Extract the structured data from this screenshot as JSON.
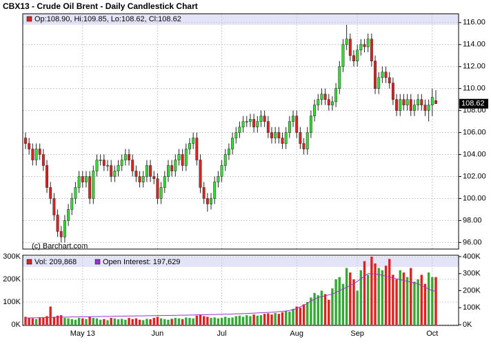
{
  "chart_data": {
    "type": "candlestick",
    "title": "CBX13 - Crude Oil Brent - Daily Candlestick Chart",
    "legend_text": "Op:108.90, Hi:109.85, Lo:108.62, Cl:108.62",
    "copyright": "(c) Barchart.com",
    "up_color": "#33dd33",
    "down_color": "#dd2222",
    "grid": true,
    "categories": [
      null,
      null,
      null,
      null,
      null,
      null,
      null,
      null,
      null,
      null,
      null,
      null,
      null,
      null,
      null,
      null,
      "May 13",
      null,
      null,
      null,
      null,
      null,
      null,
      null,
      null,
      null,
      null,
      null,
      null,
      null,
      null,
      null,
      null,
      null,
      null,
      null,
      null,
      "Jun",
      null,
      null,
      null,
      null,
      null,
      null,
      null,
      null,
      null,
      null,
      null,
      null,
      null,
      null,
      null,
      null,
      null,
      "Jul",
      null,
      null,
      null,
      null,
      null,
      null,
      null,
      null,
      null,
      null,
      null,
      null,
      null,
      null,
      null,
      null,
      null,
      null,
      null,
      null,
      "Aug",
      null,
      null,
      null,
      null,
      null,
      null,
      null,
      null,
      null,
      null,
      null,
      null,
      null,
      null,
      null,
      null,
      "Sep",
      null,
      null,
      null,
      null,
      null,
      null,
      null,
      null,
      null,
      null,
      null,
      null,
      null,
      null,
      null,
      null,
      null,
      null,
      null,
      null,
      "Oct",
      null
    ],
    "open": [
      105.5,
      105.0,
      104.5,
      103.5,
      104.5,
      104.0,
      103.0,
      101.0,
      100.0,
      98.5,
      97.0,
      96.5,
      98.0,
      99.0,
      100.0,
      101.0,
      102.0,
      101.5,
      102.0,
      100.0,
      102.5,
      103.5,
      103.5,
      103.0,
      103.0,
      102.0,
      102.5,
      103.0,
      103.5,
      104.0,
      103.5,
      102.5,
      102.0,
      101.5,
      102.0,
      103.0,
      102.0,
      101.8,
      100.0,
      101.0,
      102.0,
      103.0,
      102.5,
      103.5,
      104.0,
      103.0,
      104.5,
      105.0,
      105.5,
      103.5,
      101.0,
      100.0,
      99.5,
      100.0,
      101.5,
      102.0,
      103.0,
      104.0,
      104.5,
      105.5,
      106.0,
      106.5,
      107.0,
      107.0,
      107.2,
      106.5,
      107.0,
      107.5,
      107.0,
      106.0,
      105.5,
      106.0,
      105.5,
      105.0,
      106.0,
      107.0,
      107.5,
      106.0,
      105.0,
      104.5,
      106.0,
      107.5,
      108.5,
      109.0,
      109.5,
      109.0,
      108.5,
      108.8,
      110.0,
      112.0,
      114.0,
      114.5,
      113.0,
      112.5,
      113.5,
      114.0,
      113.8,
      114.5,
      112.5,
      110.0,
      111.0,
      111.5,
      111.0,
      110.5,
      109.0,
      108.0,
      109.0,
      108.5,
      109.0,
      108.0,
      108.5,
      109.0,
      108.5,
      108.0,
      108.5,
      108.9
    ],
    "high": [
      106.0,
      105.5,
      105.0,
      105.0,
      105.0,
      104.5,
      103.5,
      101.5,
      100.5,
      99.0,
      97.5,
      98.5,
      99.5,
      100.5,
      101.5,
      102.5,
      102.5,
      102.5,
      102.5,
      103.0,
      104.0,
      104.0,
      104.0,
      103.5,
      103.5,
      103.0,
      103.5,
      104.0,
      104.5,
      104.5,
      104.0,
      103.0,
      102.5,
      102.5,
      103.5,
      103.5,
      102.5,
      102.3,
      101.5,
      102.5,
      103.5,
      103.5,
      104.0,
      104.5,
      104.5,
      105.0,
      105.5,
      106.0,
      106.0,
      104.0,
      101.5,
      100.5,
      100.5,
      102.0,
      102.5,
      103.5,
      104.5,
      105.0,
      106.0,
      106.5,
      107.0,
      107.5,
      107.5,
      107.7,
      107.7,
      107.5,
      108.0,
      108.0,
      107.5,
      106.5,
      106.5,
      106.5,
      106.0,
      106.5,
      107.5,
      108.0,
      108.0,
      106.5,
      105.5,
      106.5,
      108.0,
      109.0,
      109.5,
      110.0,
      110.0,
      109.5,
      109.3,
      110.5,
      112.5,
      114.5,
      115.8,
      115.0,
      113.5,
      114.0,
      114.5,
      114.5,
      115.0,
      115.0,
      113.0,
      111.5,
      112.0,
      112.0,
      111.5,
      111.0,
      109.5,
      109.5,
      109.5,
      109.5,
      109.5,
      109.0,
      109.5,
      109.5,
      109.0,
      109.0,
      110.0,
      109.85
    ],
    "low": [
      104.5,
      104.0,
      103.0,
      103.0,
      103.5,
      102.5,
      100.5,
      99.5,
      98.0,
      96.5,
      96.0,
      96.0,
      97.5,
      98.5,
      99.5,
      100.5,
      101.0,
      101.0,
      99.5,
      99.5,
      102.0,
      103.0,
      102.5,
      102.5,
      101.5,
      101.5,
      102.0,
      102.5,
      103.0,
      103.0,
      102.0,
      101.5,
      101.0,
      101.0,
      101.5,
      101.5,
      101.3,
      99.5,
      99.5,
      100.5,
      101.5,
      102.0,
      102.0,
      103.0,
      102.5,
      102.5,
      104.0,
      104.5,
      103.0,
      100.5,
      99.5,
      98.8,
      99.0,
      99.5,
      101.0,
      101.5,
      102.5,
      103.5,
      104.0,
      105.0,
      105.5,
      106.0,
      106.5,
      106.5,
      106.0,
      106.0,
      106.5,
      106.5,
      105.5,
      105.0,
      105.0,
      105.0,
      104.5,
      104.5,
      105.5,
      106.5,
      105.5,
      104.5,
      104.0,
      104.0,
      105.5,
      107.0,
      108.0,
      108.5,
      108.5,
      108.0,
      108.0,
      108.3,
      109.5,
      111.5,
      113.5,
      112.5,
      112.0,
      112.0,
      113.0,
      113.3,
      113.3,
      112.0,
      109.5,
      109.5,
      110.5,
      110.5,
      110.0,
      108.5,
      107.5,
      107.5,
      108.0,
      108.0,
      107.5,
      107.5,
      108.0,
      108.0,
      107.5,
      107.0,
      107.5,
      108.62
    ],
    "close": [
      105.0,
      104.5,
      103.5,
      104.5,
      104.0,
      103.0,
      101.0,
      100.0,
      98.5,
      97.0,
      96.5,
      98.0,
      99.0,
      100.0,
      101.0,
      102.0,
      101.5,
      102.0,
      100.0,
      102.5,
      103.5,
      103.5,
      103.0,
      103.0,
      102.0,
      102.5,
      103.0,
      103.5,
      104.0,
      103.5,
      102.5,
      102.0,
      101.5,
      102.0,
      103.0,
      102.0,
      101.8,
      100.0,
      101.0,
      102.0,
      103.0,
      102.5,
      103.5,
      104.0,
      103.0,
      104.5,
      105.0,
      105.5,
      103.5,
      101.0,
      100.0,
      99.5,
      100.0,
      101.5,
      102.0,
      103.0,
      104.0,
      104.5,
      105.5,
      106.0,
      106.5,
      107.0,
      107.0,
      107.2,
      106.5,
      107.0,
      107.5,
      107.0,
      106.0,
      105.5,
      106.0,
      105.5,
      105.0,
      106.0,
      107.0,
      107.5,
      106.0,
      105.0,
      104.5,
      106.0,
      107.5,
      108.5,
      109.0,
      109.5,
      109.0,
      108.5,
      108.8,
      110.0,
      112.0,
      114.0,
      114.5,
      113.0,
      112.5,
      113.5,
      114.0,
      113.8,
      114.5,
      112.5,
      110.0,
      111.0,
      111.5,
      111.0,
      110.5,
      109.0,
      108.0,
      109.0,
      108.5,
      109.0,
      108.0,
      108.5,
      109.0,
      108.5,
      108.0,
      108.5,
      109.2,
      108.62
    ],
    "ylim": [
      95.4,
      116.8
    ],
    "yticks": [
      {
        "value": 96,
        "label": "96.00"
      },
      {
        "value": 98,
        "label": "98.00"
      },
      {
        "value": 100,
        "label": "100.00"
      },
      {
        "value": 102,
        "label": "102.00"
      },
      {
        "value": 104,
        "label": "104.00"
      },
      {
        "value": 106,
        "label": "106.00"
      },
      {
        "value": 108,
        "label": "108.00"
      },
      {
        "value": 110,
        "label": "110.00"
      },
      {
        "value": 112,
        "label": "112.00"
      },
      {
        "value": 114,
        "label": "114.00"
      },
      {
        "value": 116,
        "label": "116.00"
      }
    ],
    "volume": {
      "legend": "Vol: 209,868",
      "up_color": "#33aa33",
      "down_color": "#dd2222",
      "values": [
        35000,
        30000,
        28000,
        25000,
        30000,
        32000,
        38000,
        80000,
        35000,
        40000,
        42000,
        30000,
        28000,
        25000,
        22000,
        30000,
        28000,
        25000,
        35000,
        30000,
        28000,
        22000,
        25000,
        20000,
        30000,
        28000,
        24000,
        26000,
        22000,
        30000,
        25000,
        28000,
        22000,
        20000,
        26000,
        24000,
        30000,
        35000,
        28000,
        25000,
        22000,
        26000,
        30000,
        28000,
        25000,
        32000,
        30000,
        28000,
        40000,
        45000,
        38000,
        35000,
        30000,
        32000,
        28000,
        30000,
        35000,
        30000,
        32000,
        38000,
        40000,
        35000,
        42000,
        38000,
        45000,
        40000,
        42000,
        48000,
        50000,
        45000,
        52000,
        48000,
        55000,
        60000,
        58000,
        70000,
        80000,
        75000,
        90000,
        100000,
        120000,
        140000,
        130000,
        150000,
        135000,
        110000,
        160000,
        200000,
        210000,
        180000,
        250000,
        230000,
        200000,
        150000,
        240000,
        280000,
        220000,
        300000,
        270000,
        250000,
        240000,
        260000,
        290000,
        220000,
        200000,
        240000,
        230000,
        210000,
        250000,
        190000,
        200000,
        220000,
        180000,
        230000,
        210000,
        209868
      ],
      "ylim": [
        0,
        300000
      ],
      "yticks": [
        {
          "value": 0,
          "label": "0K"
        },
        {
          "value": 100000,
          "label": "100K"
        },
        {
          "value": 200000,
          "label": "200K"
        },
        {
          "value": 300000,
          "label": "300K"
        }
      ]
    },
    "open_interest": {
      "legend": "Open Interest: 197,629",
      "color": "#9933cc",
      "values": [
        40000,
        40000,
        41000,
        41000,
        42000,
        42000,
        43000,
        43000,
        44000,
        44000,
        45000,
        45000,
        45000,
        46000,
        46000,
        46000,
        47000,
        47000,
        47000,
        48000,
        48000,
        48000,
        49000,
        49000,
        49000,
        50000,
        50000,
        50000,
        51000,
        51000,
        51000,
        52000,
        52000,
        52000,
        53000,
        53000,
        53000,
        54000,
        54000,
        54000,
        55000,
        55000,
        55000,
        56000,
        56000,
        56000,
        57000,
        57000,
        58000,
        58000,
        59000,
        59000,
        60000,
        60000,
        61000,
        61000,
        62000,
        62000,
        63000,
        64000,
        64000,
        65000,
        66000,
        67000,
        68000,
        69000,
        70000,
        71000,
        72000,
        73000,
        75000,
        77000,
        79000,
        81000,
        84000,
        88000,
        95000,
        105000,
        115000,
        125000,
        140000,
        150000,
        160000,
        165000,
        170000,
        175000,
        180000,
        190000,
        200000,
        210000,
        220000,
        230000,
        240000,
        255000,
        270000,
        285000,
        300000,
        300000,
        298000,
        295000,
        290000,
        285000,
        280000,
        275000,
        270000,
        265000,
        260000,
        255000,
        250000,
        245000,
        240000,
        230000,
        220000,
        210000,
        200000,
        197629
      ],
      "ylim": [
        0,
        400000
      ],
      "yticks": [
        {
          "value": 0,
          "label": "0K"
        },
        {
          "value": 100000,
          "label": "100K"
        },
        {
          "value": 200000,
          "label": "200K"
        },
        {
          "value": 300000,
          "label": "300K"
        },
        {
          "value": 400000,
          "label": "400K"
        }
      ]
    }
  }
}
